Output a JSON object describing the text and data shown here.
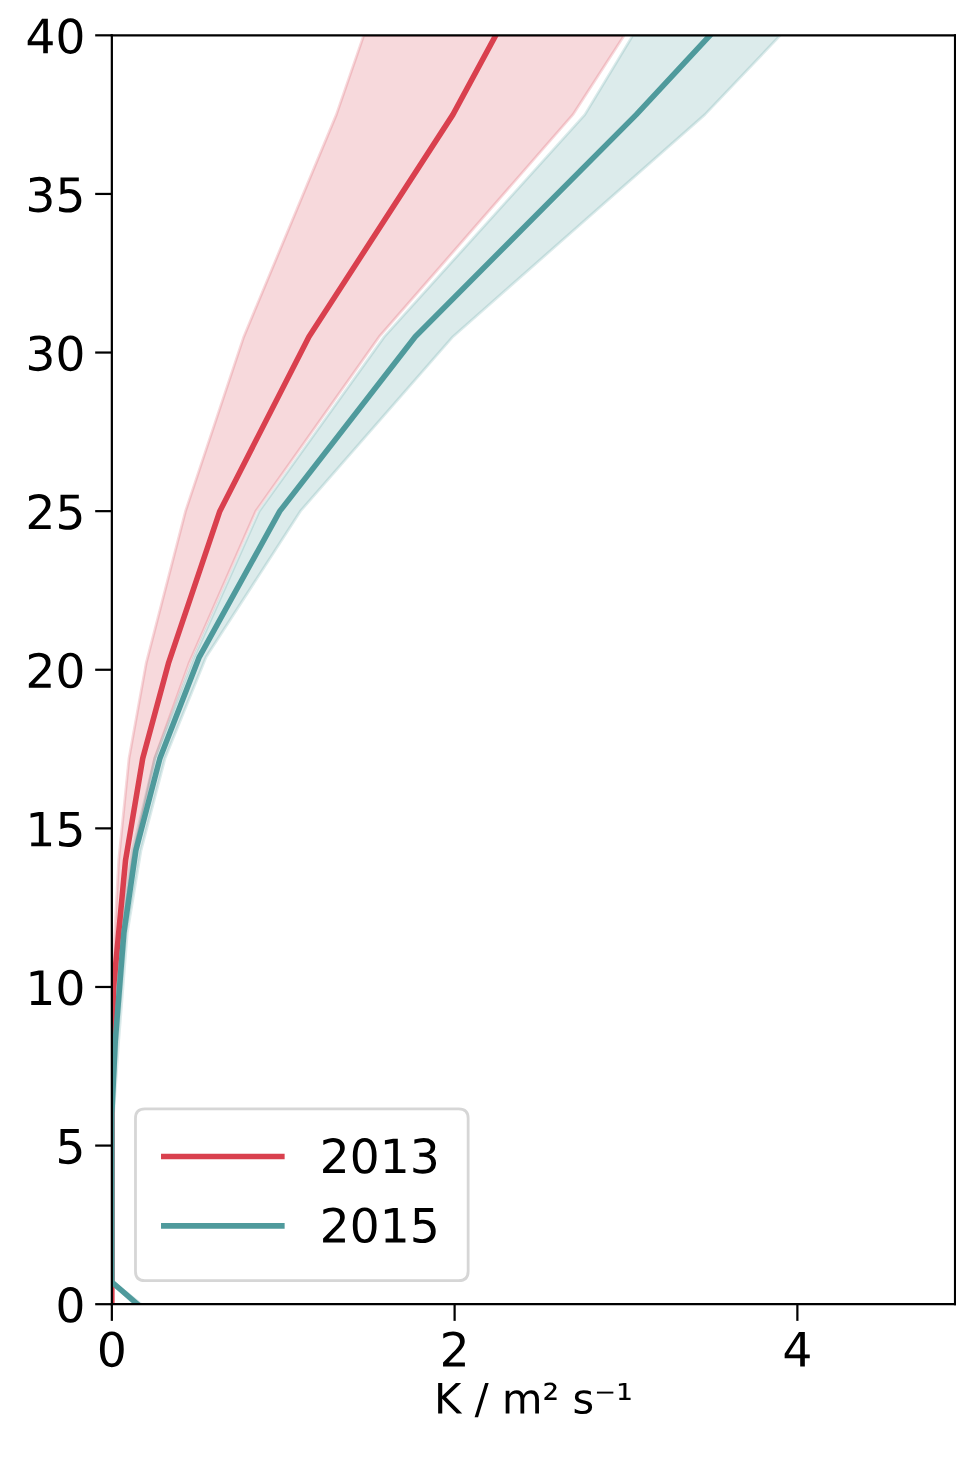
{
  "chart_data": {
    "type": "line",
    "orientation": "horizontal",
    "xlabel": "K / m² s⁻¹",
    "xlim": [
      0,
      4.92
    ],
    "xticks": [
      0,
      2,
      4
    ],
    "ylim": [
      0,
      40
    ],
    "yticks": [
      0,
      5,
      10,
      15,
      20,
      25,
      30,
      35,
      40
    ],
    "grid": false,
    "legend": "bottom left",
    "marker": "none",
    "line_style": "solid",
    "series": [
      {
        "name": "2013",
        "color": "#d9404e",
        "x": [
          0,
          8,
          10,
          14,
          17.2,
          20.2,
          25,
          30.5,
          37.5,
          40
        ],
        "values": [
          0,
          0,
          0.01,
          0.08,
          0.18,
          0.33,
          0.63,
          1.15,
          1.99,
          2.24
        ],
        "lower": [
          0,
          0,
          0,
          0.04,
          0.1,
          0.2,
          0.43,
          0.77,
          1.31,
          1.47
        ],
        "upper": [
          0,
          0.01,
          0.03,
          0.12,
          0.25,
          0.45,
          0.84,
          1.56,
          2.69,
          2.99
        ]
      },
      {
        "name": "2015",
        "color": "#4f9a9c",
        "x": [
          0,
          0.7,
          6,
          8.3,
          11.7,
          14.3,
          17.2,
          20.4,
          25,
          30.5,
          37.5,
          40
        ],
        "values": [
          0.15,
          0,
          0,
          0.02,
          0.07,
          0.14,
          0.28,
          0.51,
          0.98,
          1.77,
          3.06,
          3.49
        ],
        "lower": [
          0.13,
          0,
          0,
          0,
          0.05,
          0.12,
          0.25,
          0.48,
          0.86,
          1.59,
          2.76,
          3.04
        ],
        "upper": [
          0.17,
          0.01,
          0.01,
          0.04,
          0.09,
          0.17,
          0.31,
          0.55,
          1.1,
          1.99,
          3.46,
          3.9
        ]
      }
    ]
  }
}
